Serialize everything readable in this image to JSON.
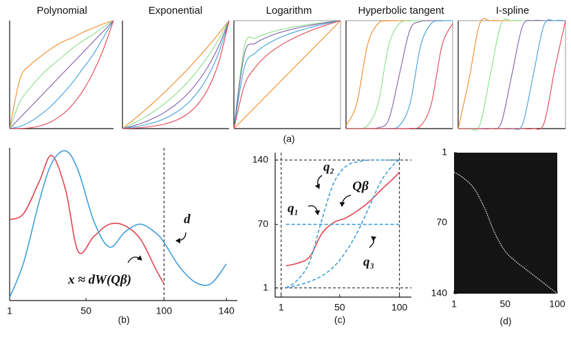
{
  "chart_data": [
    {
      "type": "line",
      "title": "Polynomial",
      "x": [
        0,
        0.1,
        0.2,
        0.3,
        0.4,
        0.5,
        0.6,
        0.7,
        0.8,
        0.9,
        1
      ],
      "xlim": [
        0,
        1
      ],
      "ylim": [
        0,
        1
      ],
      "series": [
        {
          "color": "#f08a24",
          "values": [
            0,
            0.46,
            0.59,
            0.67,
            0.74,
            0.8,
            0.84,
            0.89,
            0.93,
            0.97,
            1
          ]
        },
        {
          "color": "#86df86",
          "values": [
            0,
            0.25,
            0.38,
            0.49,
            0.58,
            0.66,
            0.74,
            0.81,
            0.87,
            0.94,
            1
          ]
        },
        {
          "color": "#7d5fa8",
          "values": [
            0,
            0.1,
            0.2,
            0.3,
            0.4,
            0.5,
            0.6,
            0.7,
            0.8,
            0.9,
            1
          ]
        },
        {
          "color": "#3f9edb",
          "values": [
            0,
            0.02,
            0.065,
            0.13,
            0.21,
            0.31,
            0.42,
            0.55,
            0.68,
            0.84,
            1
          ]
        },
        {
          "color": "#e2434f",
          "values": [
            0,
            0.001,
            0.008,
            0.027,
            0.064,
            0.125,
            0.216,
            0.343,
            0.512,
            0.729,
            1
          ]
        }
      ]
    },
    {
      "type": "line",
      "title": "Exponential",
      "x": [
        0,
        0.1,
        0.2,
        0.3,
        0.4,
        0.5,
        0.6,
        0.7,
        0.8,
        0.9,
        1
      ],
      "xlim": [
        0,
        1
      ],
      "ylim": [
        0,
        1
      ],
      "series": [
        {
          "color": "#f08a24",
          "values": [
            0,
            0.079,
            0.162,
            0.249,
            0.341,
            0.438,
            0.539,
            0.646,
            0.758,
            0.876,
            1
          ]
        },
        {
          "color": "#86df86",
          "values": [
            0,
            0.046,
            0.1,
            0.163,
            0.236,
            0.321,
            0.419,
            0.534,
            0.666,
            0.821,
            1
          ]
        },
        {
          "color": "#7d5fa8",
          "values": [
            0,
            0.025,
            0.058,
            0.1,
            0.154,
            0.223,
            0.311,
            0.425,
            0.571,
            0.759,
            1
          ]
        },
        {
          "color": "#3f9edb",
          "values": [
            0,
            0.013,
            0.032,
            0.058,
            0.095,
            0.148,
            0.223,
            0.33,
            0.481,
            0.696,
            1
          ]
        },
        {
          "color": "#e2434f",
          "values": [
            0,
            0.004,
            0.012,
            0.024,
            0.043,
            0.076,
            0.129,
            0.218,
            0.364,
            0.604,
            1
          ]
        }
      ]
    },
    {
      "type": "line",
      "title": "Logarithm",
      "x": [
        0,
        0.1,
        0.2,
        0.3,
        0.4,
        0.5,
        0.6,
        0.7,
        0.8,
        0.9,
        1
      ],
      "xlim": [
        0,
        1
      ],
      "ylim": [
        0,
        1
      ],
      "series": [
        {
          "color": "#f08a24",
          "values": [
            0,
            0.1,
            0.2,
            0.3,
            0.4,
            0.5,
            0.6,
            0.7,
            0.8,
            0.9,
            1
          ]
        },
        {
          "color": "#86df86",
          "values": [
            0,
            0.767,
            0.837,
            0.878,
            0.907,
            0.93,
            0.948,
            0.964,
            0.977,
            0.989,
            1
          ]
        },
        {
          "color": "#7d5fa8",
          "values": [
            0,
            0.698,
            0.789,
            0.842,
            0.88,
            0.909,
            0.933,
            0.953,
            0.971,
            0.986,
            1
          ]
        },
        {
          "color": "#3f9edb",
          "values": [
            0,
            0.574,
            0.7,
            0.775,
            0.829,
            0.87,
            0.904,
            0.933,
            0.958,
            0.98,
            1
          ]
        },
        {
          "color": "#e2434f",
          "values": [
            0,
            0.404,
            0.567,
            0.671,
            0.747,
            0.807,
            0.857,
            0.9,
            0.937,
            0.97,
            1
          ]
        }
      ]
    },
    {
      "type": "line",
      "title": "Hyperbolic tangent",
      "x": [
        0,
        0.1,
        0.2,
        0.3,
        0.4,
        0.5,
        0.6,
        0.7,
        0.8,
        0.9,
        1
      ],
      "xlim": [
        0,
        1
      ],
      "ylim": [
        0,
        1
      ],
      "series": [
        {
          "color": "#f08a24",
          "values": [
            0.027,
            0.231,
            0.769,
            0.973,
            0.998,
            1,
            1,
            1,
            1,
            1,
            1
          ]
        },
        {
          "color": "#86df86",
          "values": [
            0,
            0.002,
            0.027,
            0.231,
            0.769,
            0.973,
            0.998,
            1,
            1,
            1,
            1
          ]
        },
        {
          "color": "#7d5fa8",
          "values": [
            0,
            0,
            0.001,
            0.008,
            0.083,
            0.5,
            0.917,
            0.992,
            0.999,
            1,
            1
          ]
        },
        {
          "color": "#3f9edb",
          "values": [
            0,
            0,
            0,
            0,
            0.002,
            0.027,
            0.231,
            0.769,
            0.973,
            0.998,
            1
          ]
        },
        {
          "color": "#e2434f",
          "values": [
            0,
            0,
            0,
            0,
            0,
            0,
            0.002,
            0.027,
            0.231,
            0.769,
            0.973
          ]
        }
      ]
    },
    {
      "type": "line",
      "title": "I-spline",
      "x": [
        0,
        0.1,
        0.2,
        0.3,
        0.4,
        0.5,
        0.6,
        0.7,
        0.8,
        0.9,
        1
      ],
      "xlim": [
        0,
        1
      ],
      "ylim": [
        0,
        1
      ],
      "series": [
        {
          "color": "#f08a24",
          "values": [
            0,
            0.45,
            0.97,
            1,
            1,
            1,
            1,
            1,
            1,
            1,
            1
          ]
        },
        {
          "color": "#86df86",
          "values": [
            0,
            0,
            0.03,
            0.5,
            0.97,
            1,
            1,
            1,
            1,
            1,
            1
          ]
        },
        {
          "color": "#7d5fa8",
          "values": [
            0,
            0,
            0,
            0,
            0.05,
            0.5,
            0.95,
            1,
            1,
            1,
            1
          ]
        },
        {
          "color": "#3f9edb",
          "values": [
            0,
            0,
            0,
            0,
            0,
            0,
            0.04,
            0.5,
            0.96,
            1,
            1
          ]
        },
        {
          "color": "#e2434f",
          "values": [
            0,
            0,
            0,
            0,
            0,
            0,
            0,
            0,
            0.05,
            0.55,
            1
          ]
        }
      ]
    },
    {
      "type": "line",
      "x": [
        1,
        10,
        20,
        28,
        37,
        45,
        55,
        65,
        75,
        85,
        95,
        100,
        110,
        120,
        130,
        140
      ],
      "xlim": [
        1,
        147
      ],
      "ylim": [
        0,
        1
      ],
      "xticks": [
        1,
        50,
        100,
        140
      ],
      "vlines": [
        100
      ],
      "series": [
        {
          "color": "#e2434f",
          "values": [
            0.53,
            0.57,
            0.78,
            0.95,
            0.72,
            0.32,
            0.42,
            0.5,
            0.49,
            0.4,
            0.2,
            0.11,
            null,
            null,
            null,
            null
          ]
        },
        {
          "color": "#3f9edb",
          "values": [
            0.02,
            0.25,
            0.65,
            0.9,
            0.98,
            0.85,
            0.52,
            0.35,
            0.45,
            0.5,
            0.44,
            0.38,
            0.22,
            0.12,
            0.11,
            0.24
          ]
        }
      ],
      "annotations": [
        "d",
        "x ≈ dW(Qβ)"
      ]
    },
    {
      "type": "line",
      "x": [
        5,
        15,
        25,
        35,
        45,
        55,
        65,
        75,
        85,
        95,
        100
      ],
      "xlim": [
        -4,
        110
      ],
      "ylim": [
        -9,
        148
      ],
      "xticks": [
        1,
        50,
        100
      ],
      "yticks": [
        1,
        70,
        140
      ],
      "vlines": [
        1,
        100
      ],
      "hlines": [
        1,
        140
      ],
      "series": [
        {
          "color": "#e2434f",
          "dashed": false,
          "values": [
            25,
            28,
            35,
            60,
            72,
            77,
            85,
            95,
            108,
            120,
            127
          ]
        },
        {
          "color": "#3f9edb",
          "dashed": true,
          "values": [
            70,
            70,
            70,
            70,
            70,
            70,
            70,
            70,
            70,
            70,
            70
          ]
        },
        {
          "color": "#3f9edb",
          "dashed": true,
          "values": [
            1,
            10,
            30,
            75,
            115,
            133,
            138,
            140,
            140,
            140,
            140
          ]
        },
        {
          "color": "#3f9edb",
          "dashed": true,
          "values": [
            1,
            4,
            8,
            14,
            24,
            40,
            62,
            90,
            118,
            135,
            140
          ]
        }
      ],
      "annotations": [
        "q₂",
        "Qβ",
        "q₁",
        "q₃"
      ]
    },
    {
      "type": "matrix",
      "x": [
        1,
        10,
        20,
        30,
        40,
        50,
        60,
        70,
        80,
        90,
        100
      ],
      "values": [
        20,
        26,
        36,
        55,
        80,
        98,
        108,
        116,
        124,
        132,
        140
      ],
      "xlim": [
        1,
        100
      ],
      "ylim": [
        1,
        140
      ],
      "y_inverted": true,
      "xticks": [
        1,
        50,
        100
      ],
      "yticks": [
        1,
        70,
        140
      ],
      "background": "#141414",
      "color": "#e8e8e8"
    }
  ],
  "panel_labels": [
    "(a)",
    "(b)",
    "(c)",
    "(d)"
  ]
}
